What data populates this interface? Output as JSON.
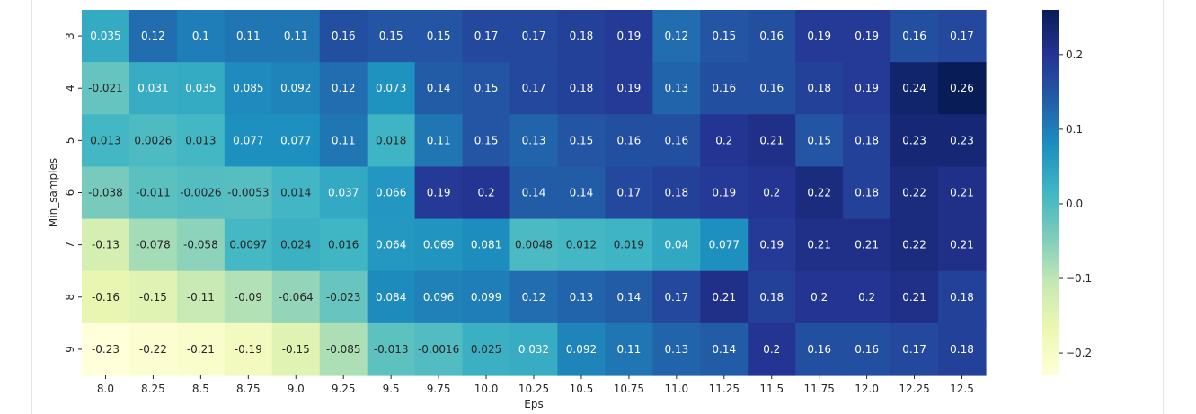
{
  "chart_data": {
    "type": "heatmap",
    "xlabel": "Eps",
    "ylabel": "Min_samples",
    "x": [
      "8.0",
      "8.25",
      "8.5",
      "8.75",
      "9.0",
      "9.25",
      "9.5",
      "9.75",
      "10.0",
      "10.25",
      "10.5",
      "10.75",
      "11.0",
      "11.25",
      "11.5",
      "11.75",
      "12.0",
      "12.25",
      "12.5"
    ],
    "y": [
      "3",
      "4",
      "5",
      "6",
      "7",
      "8",
      "9"
    ],
    "values": [
      [
        0.035,
        0.12,
        0.1,
        0.11,
        0.11,
        0.16,
        0.15,
        0.15,
        0.17,
        0.17,
        0.18,
        0.19,
        0.12,
        0.15,
        0.16,
        0.19,
        0.19,
        0.16,
        0.17
      ],
      [
        -0.021,
        0.031,
        0.035,
        0.085,
        0.092,
        0.12,
        0.073,
        0.14,
        0.15,
        0.17,
        0.18,
        0.19,
        0.13,
        0.16,
        0.16,
        0.18,
        0.19,
        0.24,
        0.26
      ],
      [
        0.013,
        0.0026,
        0.013,
        0.077,
        0.077,
        0.11,
        0.018,
        0.11,
        0.15,
        0.13,
        0.15,
        0.16,
        0.16,
        0.2,
        0.21,
        0.15,
        0.18,
        0.23,
        0.23
      ],
      [
        -0.038,
        -0.011,
        -0.0026,
        -0.0053,
        0.014,
        0.037,
        0.066,
        0.19,
        0.2,
        0.14,
        0.14,
        0.17,
        0.18,
        0.19,
        0.2,
        0.22,
        0.18,
        0.22,
        0.21
      ],
      [
        -0.13,
        -0.078,
        -0.058,
        0.0097,
        0.024,
        0.016,
        0.064,
        0.069,
        0.081,
        0.0048,
        0.012,
        0.019,
        0.04,
        0.077,
        0.19,
        0.21,
        0.21,
        0.22,
        0.21
      ],
      [
        -0.16,
        -0.15,
        -0.11,
        -0.09,
        -0.064,
        -0.023,
        0.084,
        0.096,
        0.099,
        0.12,
        0.13,
        0.14,
        0.17,
        0.21,
        0.18,
        0.2,
        0.2,
        0.21,
        0.18
      ],
      [
        -0.23,
        -0.22,
        -0.21,
        -0.19,
        -0.15,
        -0.085,
        -0.013,
        -0.0016,
        0.025,
        0.032,
        0.092,
        0.11,
        0.13,
        0.14,
        0.2,
        0.16,
        0.16,
        0.17,
        0.18
      ]
    ],
    "annot": [
      [
        "0.035",
        "0.12",
        "0.1",
        "0.11",
        "0.11",
        "0.16",
        "0.15",
        "0.15",
        "0.17",
        "0.17",
        "0.18",
        "0.19",
        "0.12",
        "0.15",
        "0.16",
        "0.19",
        "0.19",
        "0.16",
        "0.17"
      ],
      [
        "-0.021",
        "0.031",
        "0.035",
        "0.085",
        "0.092",
        "0.12",
        "0.073",
        "0.14",
        "0.15",
        "0.17",
        "0.18",
        "0.19",
        "0.13",
        "0.16",
        "0.16",
        "0.18",
        "0.19",
        "0.24",
        "0.26"
      ],
      [
        "0.013",
        "0.0026",
        "0.013",
        "0.077",
        "0.077",
        "0.11",
        "0.018",
        "0.11",
        "0.15",
        "0.13",
        "0.15",
        "0.16",
        "0.16",
        "0.2",
        "0.21",
        "0.15",
        "0.18",
        "0.23",
        "0.23"
      ],
      [
        "-0.038",
        "-0.011",
        "-0.0026",
        "-0.0053",
        "0.014",
        "0.037",
        "0.066",
        "0.19",
        "0.2",
        "0.14",
        "0.14",
        "0.17",
        "0.18",
        "0.19",
        "0.2",
        "0.22",
        "0.18",
        "0.22",
        "0.21"
      ],
      [
        "-0.13",
        "-0.078",
        "-0.058",
        "0.0097",
        "0.024",
        "0.016",
        "0.064",
        "0.069",
        "0.081",
        "0.0048",
        "0.012",
        "0.019",
        "0.04",
        "0.077",
        "0.19",
        "0.21",
        "0.21",
        "0.22",
        "0.21"
      ],
      [
        "-0.16",
        "-0.15",
        "-0.11",
        "-0.09",
        "-0.064",
        "-0.023",
        "0.084",
        "0.096",
        "0.099",
        "0.12",
        "0.13",
        "0.14",
        "0.17",
        "0.21",
        "0.18",
        "0.2",
        "0.2",
        "0.21",
        "0.18"
      ],
      [
        "-0.23",
        "-0.22",
        "-0.21",
        "-0.19",
        "-0.15",
        "-0.085",
        "-0.013",
        "-0.0016",
        "0.025",
        "0.032",
        "0.092",
        "0.11",
        "0.13",
        "0.14",
        "0.2",
        "0.16",
        "0.16",
        "0.17",
        "0.18"
      ]
    ],
    "colormap": "YlGnBu",
    "colormap_stops": [
      "#ffffd9",
      "#edf8b1",
      "#c7e9b4",
      "#7fcdbb",
      "#41b6c4",
      "#1d91c0",
      "#225ea8",
      "#253494",
      "#081d58"
    ],
    "vmin": -0.23,
    "vmax": 0.26,
    "colorbar": {
      "ticks": [
        0.2,
        0.1,
        0.0,
        -0.1,
        -0.2
      ],
      "tick_labels": [
        "0.2",
        "0.1",
        "0.0",
        "−0.1",
        "−0.2"
      ],
      "placement": "right"
    },
    "grid": false
  }
}
